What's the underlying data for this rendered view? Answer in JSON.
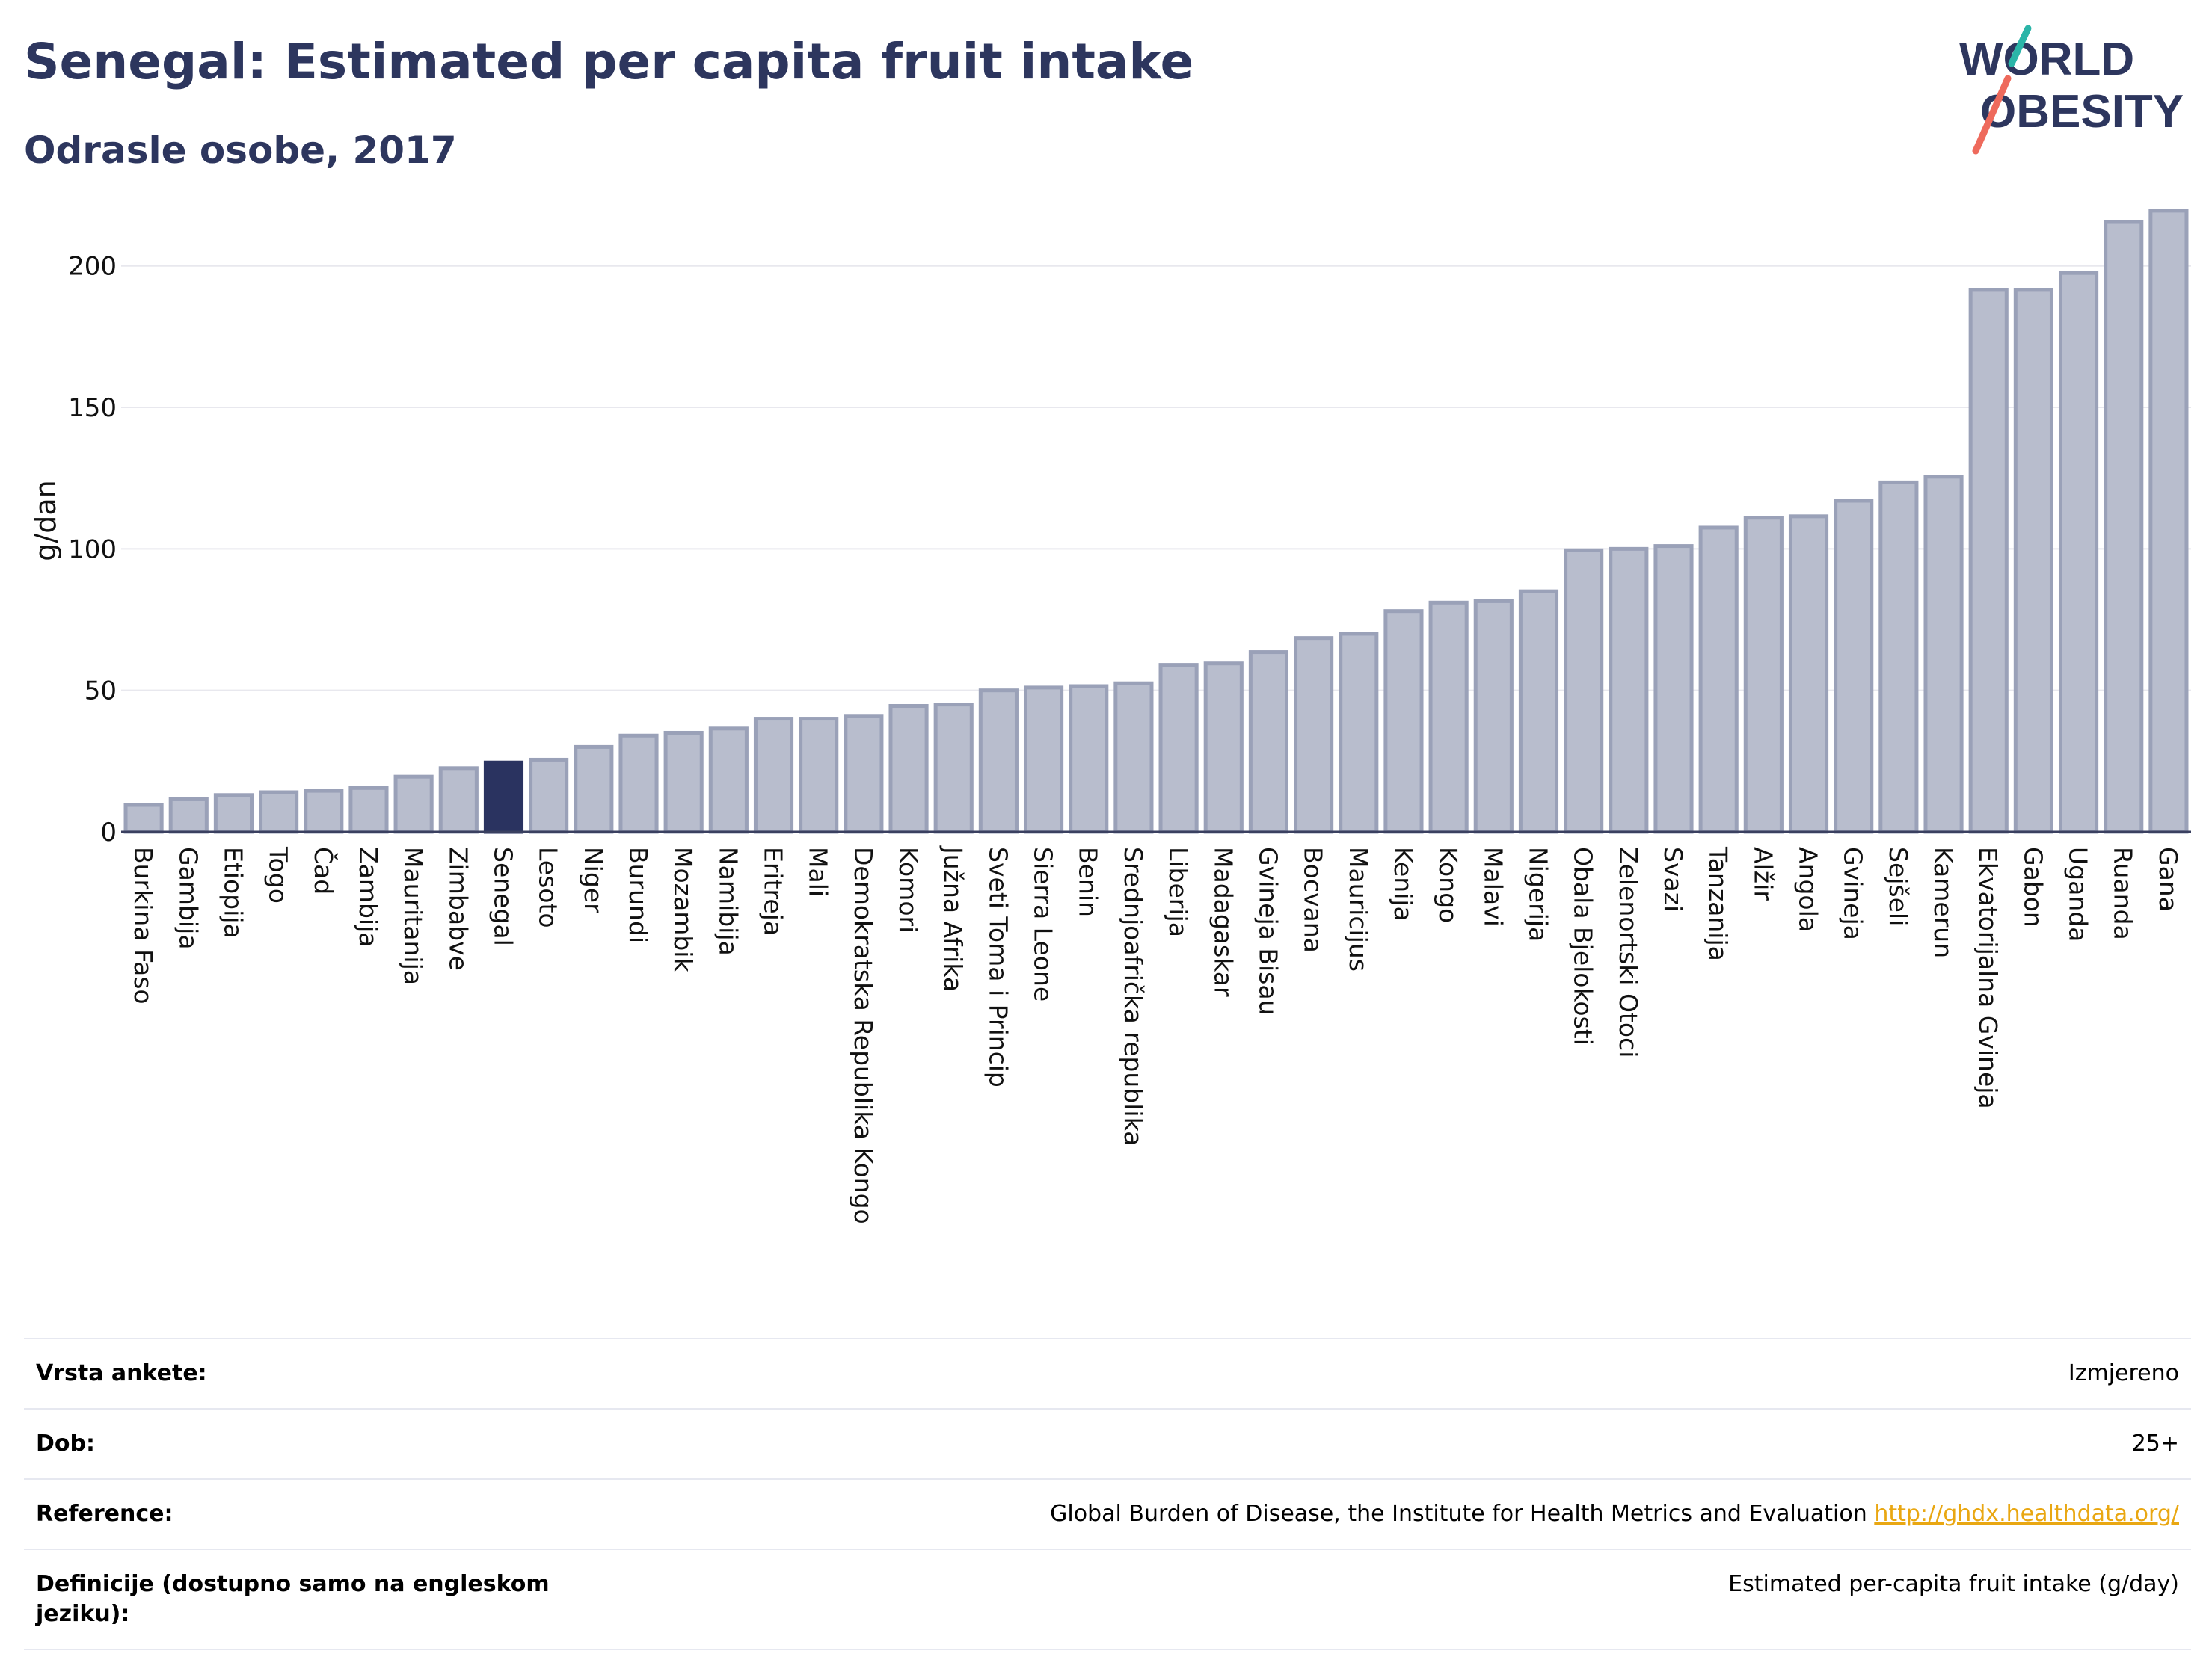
{
  "header": {
    "title": "Senegal: Estimated per capita fruit intake",
    "subtitle": "Odrasle osobe, 2017"
  },
  "logo": {
    "line1": "WORLD",
    "line2": "OBESITY"
  },
  "colors": {
    "bar": "#b8bdcd",
    "bar_stroke": "#9aa1b8",
    "highlight": "#2a3360",
    "title": "#2d365e"
  },
  "chart_data": {
    "type": "bar",
    "ylabel": "g/dan",
    "ylim": [
      0,
      220
    ],
    "yticks": [
      0,
      50,
      100,
      150,
      200
    ],
    "highlight": "Senegal",
    "categories": [
      "Burkina Faso",
      "Gambija",
      "Etiopija",
      "Togo",
      "Čad",
      "Zambija",
      "Mauritanija",
      "Zimbabve",
      "Senegal",
      "Lesoto",
      "Niger",
      "Burundi",
      "Mozambik",
      "Namibija",
      "Eritreja",
      "Mali",
      "Demokratska Republika Kongo",
      "Komori",
      "Južna Afrika",
      "Sveti Toma i Princip",
      "Sierra Leone",
      "Benin",
      "Srednjoafrička republika",
      "Liberija",
      "Madagaskar",
      "Gvineja Bisau",
      "Bocvana",
      "Mauricijus",
      "Kenija",
      "Kongo",
      "Malavi",
      "Nigerija",
      "Obala Bjelokosti",
      "Zelenortski Otoci",
      "Svazi",
      "Tanzanija",
      "Alžir",
      "Angola",
      "Gvineja",
      "Sejšeli",
      "Kamerun",
      "Ekvatorijalna Gvineja",
      "Gabon",
      "Uganda",
      "Ruanda",
      "Gana"
    ],
    "values": [
      9.5,
      11.5,
      13,
      14,
      14.5,
      15.5,
      19.5,
      22.5,
      24.5,
      25.5,
      30,
      34,
      35,
      36.5,
      40,
      40,
      41,
      44.5,
      45,
      50,
      51,
      51.5,
      52.5,
      59,
      59.5,
      63.5,
      68.5,
      70,
      78,
      81,
      81.5,
      85,
      99.5,
      100,
      101,
      107.5,
      111,
      111.5,
      117,
      123.5,
      125.5,
      191.5,
      191.5,
      197.5,
      215.5,
      219.5
    ]
  },
  "info": [
    {
      "label": "Vrsta ankete:",
      "value": "Izmjereno"
    },
    {
      "label": "Dob:",
      "value": "25+"
    },
    {
      "label": "Reference:",
      "value": "Global Burden of Disease, the Institute for Health Metrics and Evaluation",
      "link": "http://ghdx.healthdata.org/"
    },
    {
      "label": "Definicije (dostupno samo na engleskom jeziku):",
      "value": "Estimated per-capita fruit intake (g/day)"
    }
  ]
}
